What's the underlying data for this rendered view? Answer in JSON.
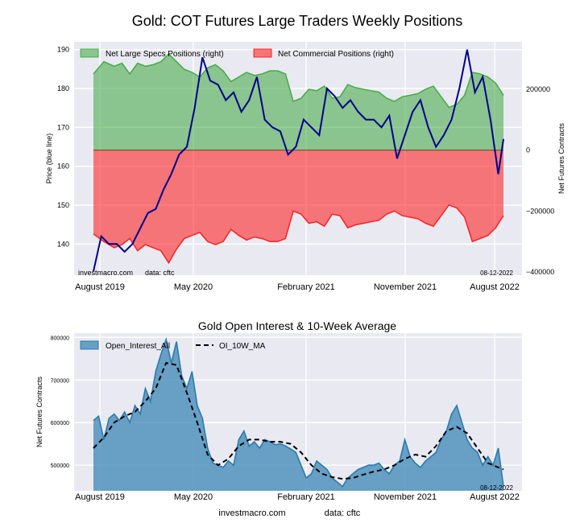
{
  "figure": {
    "title": "Gold: COT Futures Large Traders Weekly Positions"
  },
  "chart_data": [
    {
      "type": "area",
      "title": "Gold: COT Futures Large Traders Weekly Positions",
      "ylabel_left": "Price (blue line)",
      "ylabel_right": "Net Futures Contracts",
      "x_ticks": [
        "August 2019",
        "May 2020",
        "February 2021",
        "November 2021",
        "August 2022"
      ],
      "left_ticks": [
        140,
        150,
        160,
        170,
        180,
        190
      ],
      "left_ylim": [
        132,
        192
      ],
      "right_ticks": [
        -400000,
        -200000,
        0,
        200000
      ],
      "right_tick_labels": [
        "−400000",
        "−200000",
        "0",
        "200000"
      ],
      "right_ylim": [
        -410000,
        355000
      ],
      "legend": [
        "Net Large Specs Positions (right)",
        "Net Commercial Positions (right)"
      ],
      "legend_position": "top-left",
      "series": [
        {
          "name": "Net Large Specs Positions (right)",
          "color": "#2ca02c",
          "x": [
            0,
            4,
            8,
            11,
            14,
            17,
            20,
            23,
            26,
            29,
            32,
            35,
            38,
            41,
            44,
            47,
            50,
            53,
            56,
            59,
            62,
            65,
            68,
            71,
            74,
            77,
            80,
            83,
            86,
            89,
            92,
            95,
            98,
            101,
            104,
            107,
            110,
            113,
            116,
            119,
            122,
            125,
            128,
            131,
            134,
            137,
            140,
            143,
            146,
            149,
            152,
            155,
            158
          ],
          "values": [
            250000,
            290000,
            275000,
            285000,
            250000,
            285000,
            275000,
            280000,
            290000,
            315000,
            290000,
            265000,
            255000,
            240000,
            270000,
            280000,
            260000,
            225000,
            240000,
            255000,
            245000,
            250000,
            260000,
            260000,
            250000,
            160000,
            170000,
            200000,
            195000,
            210000,
            170000,
            175000,
            215000,
            205000,
            200000,
            195000,
            190000,
            170000,
            160000,
            175000,
            180000,
            185000,
            200000,
            210000,
            175000,
            140000,
            150000,
            180000,
            255000,
            250000,
            240000,
            220000,
            180000
          ]
        },
        {
          "name": "Net Commercial Positions (right)",
          "color": "#ff0000",
          "x": [
            0,
            4,
            8,
            11,
            14,
            17,
            20,
            23,
            26,
            29,
            32,
            35,
            38,
            41,
            44,
            47,
            50,
            53,
            56,
            59,
            62,
            65,
            68,
            71,
            74,
            77,
            80,
            83,
            86,
            89,
            92,
            95,
            98,
            101,
            104,
            107,
            110,
            113,
            116,
            119,
            122,
            125,
            128,
            131,
            134,
            137,
            140,
            143,
            146,
            149,
            152,
            155,
            158
          ],
          "values": [
            -275000,
            -300000,
            -320000,
            -310000,
            -290000,
            -330000,
            -310000,
            -320000,
            -330000,
            -370000,
            -325000,
            -290000,
            -280000,
            -270000,
            -300000,
            -310000,
            -300000,
            -260000,
            -280000,
            -295000,
            -285000,
            -290000,
            -300000,
            -300000,
            -290000,
            -200000,
            -210000,
            -240000,
            -235000,
            -250000,
            -210000,
            -215000,
            -255000,
            -245000,
            -240000,
            -235000,
            -230000,
            -210000,
            -200000,
            -215000,
            -220000,
            -225000,
            -240000,
            -250000,
            -215000,
            -180000,
            -190000,
            -220000,
            -300000,
            -290000,
            -280000,
            -255000,
            -215000
          ]
        },
        {
          "name": "Price",
          "color": "#00008b",
          "axis": "left",
          "x": [
            0,
            3,
            6,
            9,
            12,
            15,
            18,
            21,
            24,
            27,
            30,
            33,
            36,
            39,
            42,
            45,
            48,
            51,
            54,
            57,
            60,
            63,
            66,
            69,
            72,
            75,
            78,
            81,
            84,
            87,
            90,
            93,
            96,
            99,
            102,
            105,
            108,
            111,
            114,
            117,
            120,
            123,
            126,
            129,
            132,
            135,
            138,
            141,
            144,
            147,
            150,
            153,
            156,
            158
          ],
          "values": [
            133,
            142,
            140,
            140,
            138,
            140,
            144,
            148,
            149,
            154,
            158,
            163,
            165,
            175,
            188,
            182,
            181,
            177,
            179,
            174,
            177,
            183,
            172,
            170,
            169,
            163,
            165,
            172,
            170,
            168,
            180,
            178,
            175,
            177,
            174,
            172,
            172,
            170,
            173,
            162,
            168,
            174,
            177,
            170,
            165,
            168,
            172,
            180,
            190,
            179,
            183,
            172,
            158,
            167
          ]
        }
      ],
      "annotations": [
        "investmacro.com",
        "data: cftc",
        "08-12-2022"
      ]
    },
    {
      "type": "area",
      "title": "Gold Open Interest & 10-Week Average",
      "ylabel": "Net Futures Contracts",
      "x_ticks": [
        "August 2019",
        "May 2020",
        "February 2021",
        "November 2021",
        "August 2022"
      ],
      "y_ticks": [
        500000,
        600000,
        700000,
        800000
      ],
      "ylim": [
        440000,
        810000
      ],
      "legend": [
        "Open_Interest_All",
        "OI_10W_MA"
      ],
      "legend_position": "top-left",
      "series": [
        {
          "name": "Open_Interest_All",
          "color": "#3b86b5",
          "x": [
            0,
            2,
            4,
            6,
            8,
            10,
            12,
            14,
            16,
            18,
            20,
            22,
            24,
            26,
            28,
            30,
            32,
            34,
            36,
            38,
            40,
            42,
            44,
            46,
            48,
            50,
            52,
            54,
            56,
            58,
            60,
            62,
            64,
            66,
            68,
            70,
            72,
            74,
            76,
            78,
            80,
            82,
            84,
            86,
            88,
            90,
            92,
            94,
            96,
            98,
            100,
            102,
            104,
            106,
            108,
            110,
            112,
            114,
            116,
            118,
            120,
            122,
            124,
            126,
            128,
            130,
            132,
            134,
            136,
            138,
            140,
            142,
            144,
            146,
            148,
            150,
            152,
            154,
            156,
            158
          ],
          "values": [
            605000,
            615000,
            560000,
            610000,
            620000,
            605000,
            625000,
            600000,
            640000,
            620000,
            680000,
            650000,
            720000,
            760000,
            795000,
            740000,
            790000,
            710000,
            680000,
            720000,
            640000,
            610000,
            540000,
            505000,
            500000,
            495000,
            510000,
            500000,
            560000,
            580000,
            545000,
            555000,
            540000,
            560000,
            555000,
            548000,
            550000,
            545000,
            538000,
            530000,
            500000,
            470000,
            480000,
            510000,
            500000,
            490000,
            470000,
            460000,
            450000,
            470000,
            480000,
            490000,
            495000,
            500000,
            500000,
            505000,
            490000,
            480000,
            500000,
            510000,
            560000,
            520000,
            505000,
            495000,
            510000,
            520000,
            530000,
            560000,
            580000,
            620000,
            640000,
            600000,
            560000,
            540000,
            530000,
            500000,
            520000,
            500000,
            540000,
            450000
          ]
        },
        {
          "name": "OI_10W_MA",
          "color": "#000000",
          "dashed": true,
          "x": [
            0,
            4,
            8,
            12,
            16,
            20,
            24,
            28,
            32,
            36,
            40,
            44,
            48,
            52,
            56,
            60,
            64,
            68,
            72,
            76,
            80,
            84,
            88,
            92,
            96,
            100,
            104,
            108,
            112,
            116,
            120,
            124,
            128,
            132,
            136,
            140,
            144,
            148,
            152,
            156,
            158
          ],
          "values": [
            540000,
            565000,
            600000,
            615000,
            625000,
            650000,
            680000,
            740000,
            735000,
            670000,
            600000,
            525000,
            500000,
            515000,
            545000,
            560000,
            560000,
            555000,
            555000,
            550000,
            530000,
            500000,
            480000,
            472000,
            468000,
            470000,
            478000,
            485000,
            490000,
            500000,
            515000,
            525000,
            520000,
            545000,
            580000,
            590000,
            575000,
            540000,
            505000,
            495000,
            490000
          ]
        }
      ],
      "annotations": [
        "08-12-2022"
      ],
      "footer": [
        "investmacro.com",
        "data: cftc"
      ]
    }
  ]
}
